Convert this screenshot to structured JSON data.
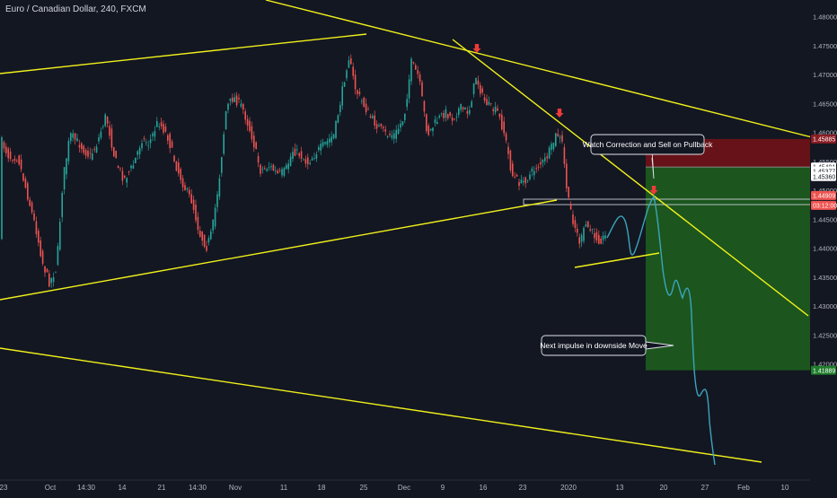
{
  "chart_data": {
    "type": "candlestick",
    "title": "Euro / Canadian Dollar, 240, FXCM",
    "y_axis": {
      "range": [
        1.4165,
        1.4835
      ],
      "ticks": [
        "1.48000",
        "1.47500",
        "1.47000",
        "1.46500",
        "1.46000",
        "1.45500",
        "1.45000",
        "1.44500",
        "1.44000",
        "1.43500",
        "1.43000",
        "1.42500",
        "1.42000"
      ]
    },
    "x_axis": {
      "ticks": [
        "23",
        "Oct",
        "14:30",
        "14",
        "21",
        "14:30",
        "Nov",
        "11",
        "18",
        "25",
        "Dec",
        "9",
        "16",
        "23",
        "2020",
        "13",
        "20",
        "27",
        "Feb",
        "10"
      ]
    },
    "price_badges": [
      {
        "label": "1.45885",
        "role": "stop-loss"
      },
      {
        "label": "1.45401",
        "role": "entry"
      },
      {
        "label": "1.45377",
        "role": "level"
      },
      {
        "label": "1.45360",
        "role": "level"
      },
      {
        "label": "1.44909",
        "role": "last-price"
      },
      {
        "label": "03:12:00",
        "role": "countdown"
      },
      {
        "label": "1.41889",
        "role": "take-profit"
      }
    ],
    "annotations": [
      "Watch Correction and Sell on Pullback",
      "Next impulse in downside Move"
    ],
    "trade_setup": {
      "direction": "short",
      "entry": 1.45401,
      "stop": 1.45885,
      "target": 1.41889
    },
    "colors": {
      "bull": "#26a69a",
      "bear": "#ef5350",
      "trendline": "#f0f01a",
      "projection": "#3ba5bd",
      "stop_zone": "#6b1218",
      "target_zone": "#1c5a1f"
    }
  }
}
